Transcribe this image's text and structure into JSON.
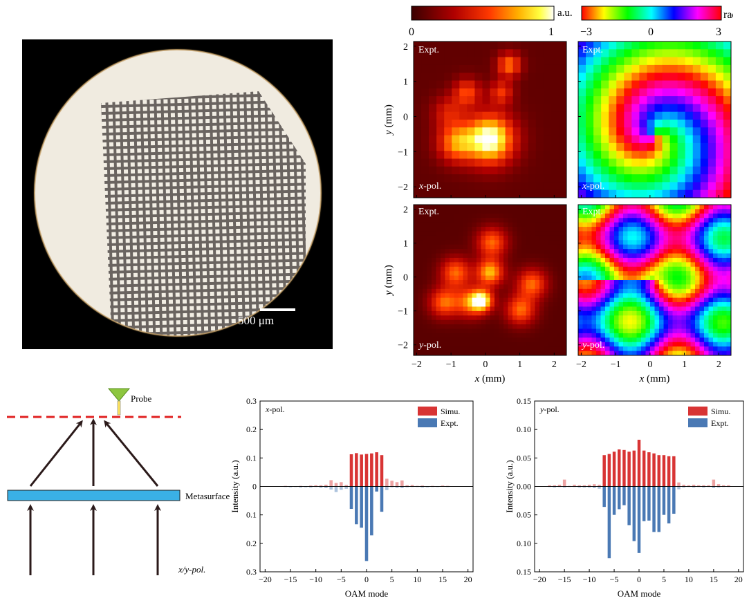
{
  "photo": {
    "scale_label": "500 μm"
  },
  "colorbars": {
    "amplitude": {
      "min": "0",
      "max": "1",
      "unit": "a.u."
    },
    "phase": {
      "min": "−3",
      "mid": "0",
      "max": "3",
      "unit": "rad"
    }
  },
  "maps": {
    "expt_label": "Expt.",
    "x_pol": "x",
    "y_pol": "y",
    "pol_suffix": "-pol.",
    "axis_var_x": "x",
    "axis_var_y": "y",
    "axis_unit": " (mm)",
    "ticks": [
      "−2",
      "−1",
      "0",
      "1",
      "2"
    ],
    "colors": {
      "amp_low": "#3a0000",
      "amp_high": "#ffffff"
    }
  },
  "schematic": {
    "probe": "Probe",
    "metasurface": "Metasurface",
    "incident": "x/y-pol.",
    "colors": {
      "dashed": "#e02020",
      "metasurface": "#3ab0e6",
      "probe": "#8dc63f"
    }
  },
  "chart_data": [
    {
      "type": "bar",
      "annotation": "x-pol.",
      "xlabel": "OAM mode",
      "ylabel": "Intensity (a.u.)",
      "xlim": [
        -21,
        21
      ],
      "ylim_top": [
        0,
        0.3
      ],
      "ylim_bottom": [
        0,
        0.3
      ],
      "xticks": [
        "−20",
        "−15",
        "−10",
        "−5",
        "0",
        "5",
        "10",
        "15",
        "20"
      ],
      "yticks_top": [
        "0.3",
        "0.2",
        "0.1",
        "0"
      ],
      "yticks_bottom": [
        "0.1",
        "0.2",
        "0.3"
      ],
      "legend": [
        "Simu.",
        "Expt."
      ],
      "legend_position": "top-right",
      "series": [
        {
          "name": "Simu.",
          "x": [
            -16,
            -15,
            -14,
            -13,
            -12,
            -11,
            -10,
            -9,
            -8,
            -7,
            -6,
            -5,
            -4,
            -3,
            -2,
            -1,
            0,
            1,
            2,
            3,
            4,
            5,
            6,
            7,
            8,
            9,
            10,
            11,
            12,
            13,
            14,
            15,
            16
          ],
          "values": [
            0.002,
            0.001,
            0.001,
            0.002,
            0.001,
            0.003,
            0.004,
            0.004,
            0.006,
            0.022,
            0.012,
            0.015,
            0.005,
            0.113,
            0.117,
            0.112,
            0.114,
            0.116,
            0.12,
            0.11,
            0.027,
            0.02,
            0.015,
            0.021,
            0.004,
            0.005,
            0.002,
            0.003,
            0.001,
            0.002,
            0.001,
            0.003,
            0.002
          ],
          "color": "#d83434"
        },
        {
          "name": "Expt.",
          "x": [
            -16,
            -15,
            -14,
            -13,
            -12,
            -11,
            -10,
            -9,
            -8,
            -7,
            -6,
            -5,
            -4,
            -3,
            -2,
            -1,
            0,
            1,
            2,
            3,
            4,
            5,
            6,
            7,
            8,
            9,
            10,
            11,
            12,
            13,
            14,
            15,
            16
          ],
          "values": [
            0.002,
            0.003,
            0.002,
            0.004,
            0.003,
            0.004,
            0.002,
            0.005,
            0.006,
            0.011,
            0.02,
            0.012,
            0.008,
            0.079,
            0.133,
            0.145,
            0.262,
            0.172,
            0.018,
            0.089,
            0.013,
            0.003,
            0.005,
            0.006,
            0.003,
            0.002,
            0.002,
            0.004,
            0.003,
            0.002,
            0.002,
            0.001,
            0.002
          ],
          "color": "#4a79b4"
        }
      ]
    },
    {
      "type": "bar",
      "annotation": "y-pol.",
      "xlabel": "OAM mode",
      "ylabel": "Intensity (a.u.)",
      "xlim": [
        -21,
        21
      ],
      "ylim_top": [
        0,
        0.15
      ],
      "ylim_bottom": [
        0,
        0.15
      ],
      "xticks": [
        "−20",
        "−15",
        "−10",
        "−5",
        "0",
        "5",
        "10",
        "15",
        "20"
      ],
      "yticks_top": [
        "0.15",
        "0.10",
        "0.05",
        "0.00"
      ],
      "yticks_bottom": [
        "0.05",
        "0.10",
        "0.15"
      ],
      "legend": [
        "Simu.",
        "Expt."
      ],
      "legend_position": "top-right",
      "series": [
        {
          "name": "Simu.",
          "x": [
            -18,
            -17,
            -16,
            -15,
            -14,
            -13,
            -12,
            -11,
            -10,
            -9,
            -8,
            -7,
            -6,
            -5,
            -4,
            -3,
            -2,
            -1,
            0,
            1,
            2,
            3,
            4,
            5,
            6,
            7,
            8,
            9,
            10,
            11,
            12,
            13,
            14,
            15,
            16,
            17,
            18
          ],
          "values": [
            0.002,
            0.002,
            0.003,
            0.012,
            0.001,
            0.003,
            0.002,
            0.002,
            0.003,
            0.004,
            0.003,
            0.055,
            0.057,
            0.061,
            0.065,
            0.064,
            0.061,
            0.063,
            0.082,
            0.063,
            0.06,
            0.058,
            0.055,
            0.055,
            0.053,
            0.053,
            0.007,
            0.003,
            0.002,
            0.003,
            0.002,
            0.002,
            0.002,
            0.012,
            0.004,
            0.002,
            0.002
          ],
          "color": "#d83434"
        },
        {
          "name": "Expt.",
          "x": [
            -18,
            -17,
            -16,
            -15,
            -14,
            -13,
            -12,
            -11,
            -10,
            -9,
            -8,
            -7,
            -6,
            -5,
            -4,
            -3,
            -2,
            -1,
            0,
            1,
            2,
            3,
            4,
            5,
            6,
            7,
            8,
            9,
            10,
            11,
            12,
            13,
            14,
            15,
            16,
            17,
            18
          ],
          "values": [
            0.001,
            0.002,
            0.001,
            0.002,
            0.001,
            0.001,
            0.002,
            0.002,
            0.002,
            0.003,
            0.004,
            0.036,
            0.126,
            0.05,
            0.04,
            0.033,
            0.068,
            0.096,
            0.117,
            0.061,
            0.06,
            0.08,
            0.08,
            0.05,
            0.065,
            0.048,
            0.005,
            0.002,
            0.001,
            0.002,
            0.001,
            0.002,
            0.001,
            0.003,
            0.002,
            0.001,
            0.001
          ],
          "color": "#4a79b4"
        }
      ]
    }
  ]
}
